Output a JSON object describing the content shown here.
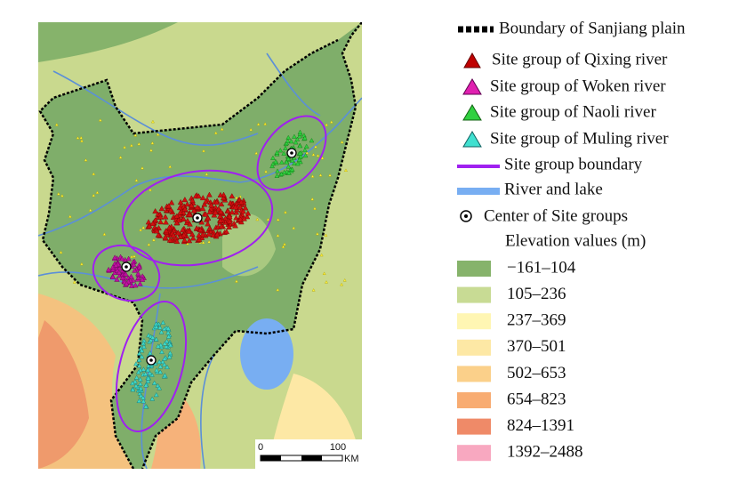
{
  "legend": {
    "items": [
      {
        "label": "Boundary of Sanjiang plain"
      },
      {
        "label": "Site group of Qixing river"
      },
      {
        "label": "Site group of Woken river"
      },
      {
        "label": "Site group of Naoli river"
      },
      {
        "label": "Site group of Muling river"
      },
      {
        "label": "Site group boundary"
      },
      {
        "label": "River and lake"
      },
      {
        "label": "Center of Site groups"
      }
    ],
    "elevation_title": "Elevation values (m)",
    "elevation_classes": [
      {
        "label": "−161–104",
        "color": "#86b36b"
      },
      {
        "label": "105–236",
        "color": "#c8db94"
      },
      {
        "label": "237–369",
        "color": "#fff6b3"
      },
      {
        "label": "370–501",
        "color": "#fde8a5"
      },
      {
        "label": "502–653",
        "color": "#fbd08a"
      },
      {
        "label": "654–823",
        "color": "#f8ac72"
      },
      {
        "label": "824–1391",
        "color": "#ef8a68"
      },
      {
        "label": "1392–2488",
        "color": "#f8a8c0"
      }
    ]
  },
  "scale_bar": {
    "labels": [
      "0",
      "100"
    ],
    "unit": "KM"
  }
}
